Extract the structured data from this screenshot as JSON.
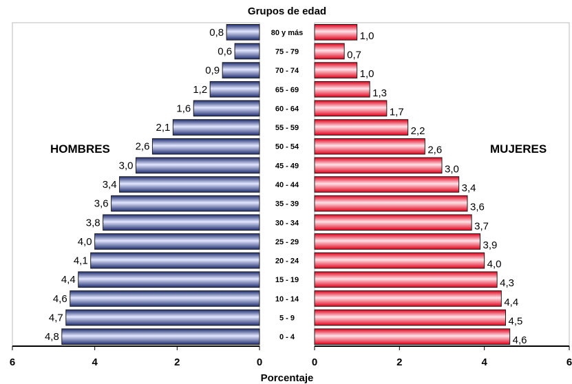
{
  "chart_data": {
    "type": "bar",
    "subtype": "population-pyramid",
    "title": "Grupos de edad",
    "xlabel": "Porcentaje",
    "categories": [
      "80 y más",
      "75 - 79",
      "70 - 74",
      "65 - 69",
      "60 - 64",
      "55 - 59",
      "50 - 54",
      "45 - 49",
      "40 - 44",
      "35 - 39",
      "30 - 34",
      "25 - 29",
      "20 - 24",
      "15 - 19",
      "10 - 14",
      "5 - 9",
      "0 - 4"
    ],
    "series": [
      {
        "name": "HOMBRES",
        "color": "#2b3a7a",
        "values": [
          0.8,
          0.6,
          0.9,
          1.2,
          1.6,
          2.1,
          2.6,
          3.0,
          3.4,
          3.6,
          3.8,
          4.0,
          4.1,
          4.4,
          4.6,
          4.7,
          4.8
        ],
        "labels": [
          "0,8",
          "0,6",
          "0,9",
          "1,2",
          "1,6",
          "2,1",
          "2,6",
          "3,0",
          "3,4",
          "3,6",
          "3,8",
          "4,0",
          "4,1",
          "4,4",
          "4,6",
          "4,7",
          "4,8"
        ]
      },
      {
        "name": "MUJERES",
        "color": "#d3212b",
        "values": [
          1.0,
          0.7,
          1.0,
          1.3,
          1.7,
          2.2,
          2.6,
          3.0,
          3.4,
          3.6,
          3.7,
          3.9,
          4.0,
          4.3,
          4.4,
          4.5,
          4.6
        ],
        "labels": [
          "1,0",
          "0,7",
          "1,0",
          "1,3",
          "1,7",
          "2,2",
          "2,6",
          "3,0",
          "3,4",
          "3,6",
          "3,7",
          "3,9",
          "4,0",
          "4,3",
          "4,4",
          "4,5",
          "4,6"
        ]
      }
    ],
    "xlim_left": [
      6,
      0
    ],
    "xlim_right": [
      0,
      6
    ],
    "xticks_left": [
      "6",
      "4",
      "2",
      "0"
    ],
    "xticks_right": [
      "0",
      "2",
      "4",
      "6"
    ],
    "grid": false,
    "legend": "none"
  }
}
